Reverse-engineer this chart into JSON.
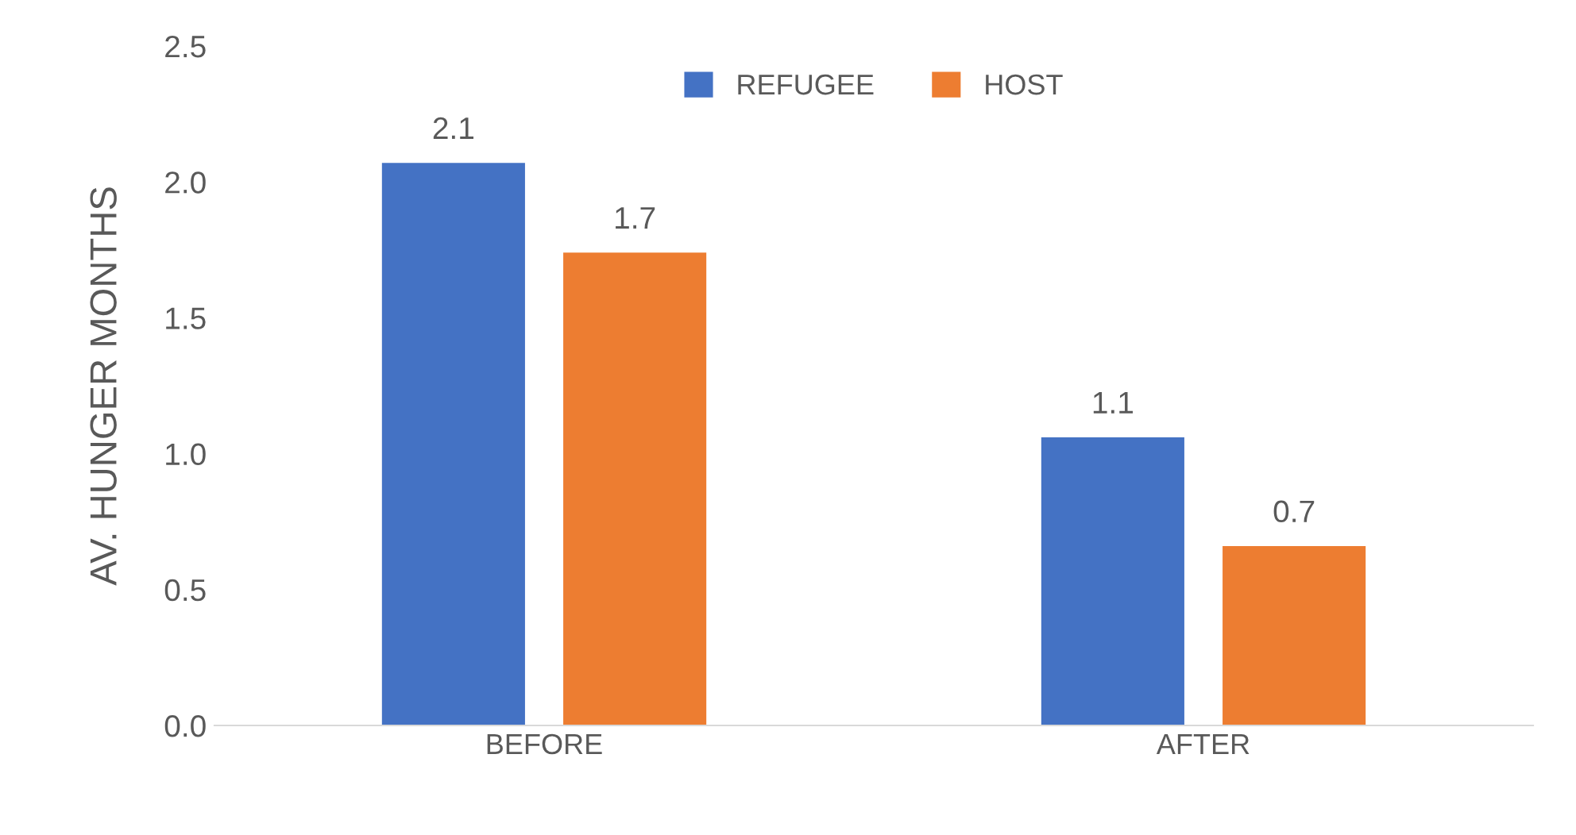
{
  "chart_data": {
    "type": "bar",
    "ylabel": "AV. HUNGER MONTHS",
    "categories": [
      "BEFORE",
      "AFTER"
    ],
    "series": [
      {
        "name": "REFUGEE",
        "color": "#4472c4",
        "values": [
          2.07,
          1.06
        ],
        "value_labels": [
          "2.1",
          "1.1"
        ]
      },
      {
        "name": "HOST",
        "color": "#ed7d31",
        "values": [
          1.74,
          0.66
        ],
        "value_labels": [
          "1.7",
          "0.7"
        ]
      }
    ],
    "ylim": [
      0,
      2.5
    ],
    "yticks": [
      {
        "value": 0,
        "label": "0.0"
      },
      0.5,
      {
        "value": 1,
        "label": "1.0"
      },
      1.5,
      {
        "value": 2,
        "label": "2.0"
      },
      2.5
    ],
    "grid": false,
    "legend": "top"
  }
}
